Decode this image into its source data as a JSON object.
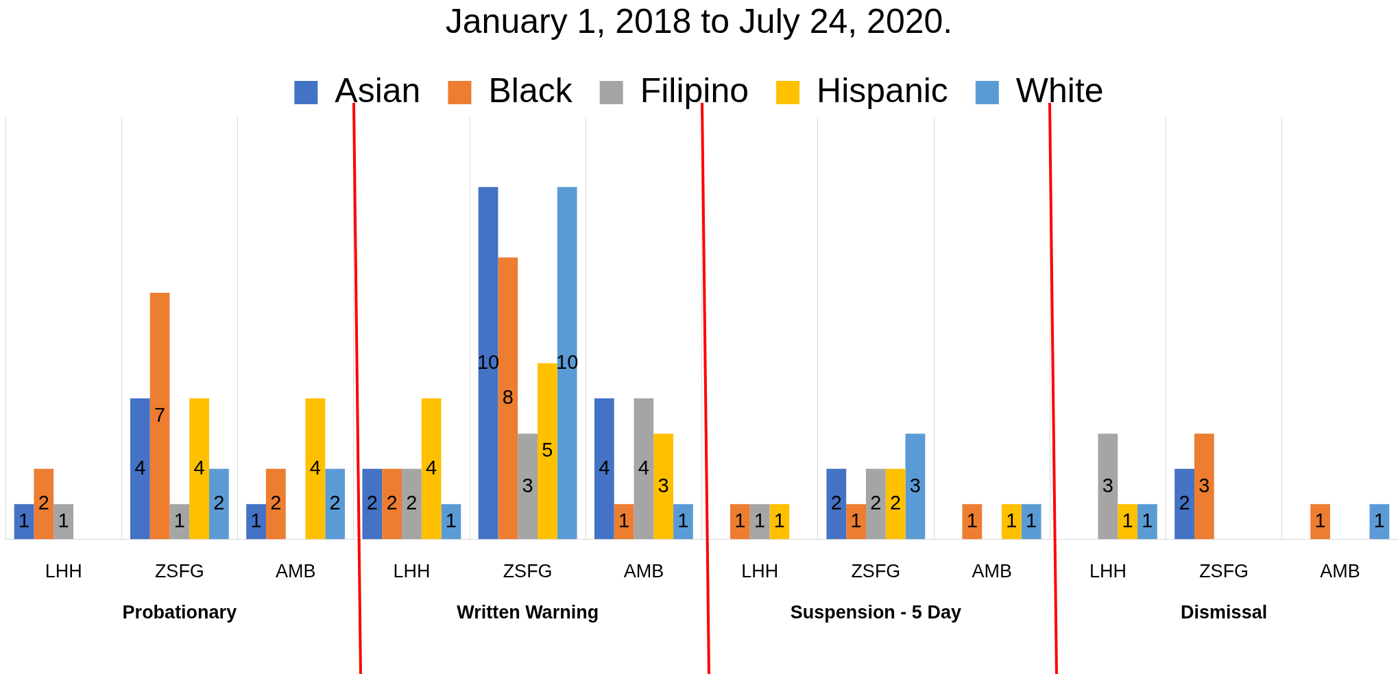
{
  "chart_data": {
    "type": "bar",
    "title": "January 1, 2018 to July 24, 2020.",
    "categories": [
      "LHH",
      "ZSFG",
      "AMB",
      "LHH",
      "ZSFG",
      "AMB",
      "LHH",
      "ZSFG",
      "AMB",
      "LHH",
      "ZSFG",
      "AMB"
    ],
    "series": [
      {
        "name": "Asian",
        "color": "#4472c4",
        "values": [
          1,
          4,
          1,
          2,
          10,
          4,
          null,
          2,
          null,
          null,
          2,
          null
        ]
      },
      {
        "name": "Black",
        "color": "#ed7d31",
        "values": [
          2,
          7,
          2,
          2,
          8,
          1,
          1,
          1,
          1,
          null,
          3,
          1
        ]
      },
      {
        "name": "Filipino",
        "color": "#a5a5a5",
        "values": [
          1,
          1,
          null,
          2,
          3,
          4,
          1,
          2,
          null,
          3,
          null,
          null
        ]
      },
      {
        "name": "Hispanic",
        "color": "#ffc000",
        "values": [
          null,
          4,
          4,
          4,
          5,
          3,
          1,
          2,
          1,
          1,
          null,
          null
        ]
      },
      {
        "name": "White",
        "color": "#5b9bd5",
        "values": [
          null,
          2,
          2,
          1,
          10,
          1,
          null,
          3,
          1,
          1,
          null,
          1
        ]
      }
    ],
    "ylim": [
      0,
      12
    ],
    "tick_labels": "x",
    "grid": "x",
    "legend": "top",
    "data_labels": true,
    "annotations": [
      "Probationary",
      "Written Warning",
      "Suspension - 5 Day",
      "Dismissal"
    ]
  }
}
